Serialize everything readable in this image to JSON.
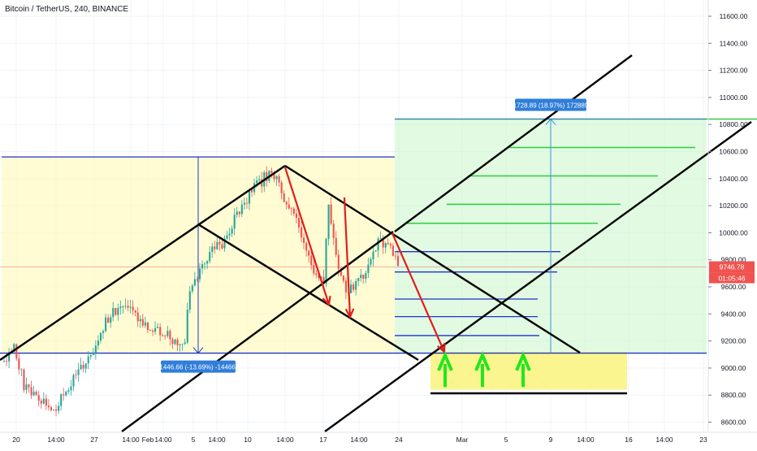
{
  "chart_data": {
    "type": "candlestick",
    "title": "Bitcoin / TetherUS, 240, BINANCE",
    "x_ticks": [
      "20",
      "14:00",
      "27",
      "14:00",
      "Feb",
      "14:00",
      "5",
      "14:00",
      "10",
      "14:00",
      "17",
      "14:00",
      "24",
      "Mar",
      "5",
      "9",
      "14:00",
      "16",
      "14:00",
      "23"
    ],
    "y_ticks": [
      8600,
      8800,
      9000,
      9200,
      9400,
      9600,
      9800,
      10000,
      10200,
      10400,
      10600,
      10800,
      11000,
      11200,
      11400,
      11600
    ],
    "ylim": [
      8530,
      11700
    ],
    "current_price": "9746.78",
    "countdown": "01:05:46",
    "colors": {
      "up": "#26a69a",
      "down": "#ef5350",
      "trend_line": "#000000",
      "level_blue": "#1f35c8",
      "level_green": "#2ecc40",
      "arrow_red": "#e01e1e",
      "arrow_green": "#22e61e",
      "price_badge": "#ef5350",
      "measure_badge": "#2f7ed8"
    },
    "annotations": {
      "drop_measure": "-1446.66 (-13.69%) -144666",
      "rise_measure": "1728.89 (18.97%) 172889"
    },
    "price_levels": {
      "range_top": 10560,
      "range_bottom": 9110,
      "target_top": 10840,
      "blue_levels": [
        9860,
        9710,
        9510,
        9380,
        9240
      ],
      "green_levels": [
        10630,
        10420,
        10210,
        10070
      ],
      "support_zone": [
        8840,
        9120
      ]
    },
    "candles_anchor": [
      [
        0,
        9050
      ],
      [
        4,
        9150
      ],
      [
        8,
        8860
      ],
      [
        12,
        8800
      ],
      [
        16,
        8760
      ],
      [
        20,
        8700
      ],
      [
        25,
        8850
      ],
      [
        30,
        8990
      ],
      [
        34,
        9120
      ],
      [
        38,
        9300
      ],
      [
        42,
        9400
      ],
      [
        46,
        9480
      ],
      [
        50,
        9400
      ],
      [
        54,
        9340
      ],
      [
        58,
        9300
      ],
      [
        62,
        9260
      ],
      [
        66,
        9200
      ],
      [
        70,
        9160
      ],
      [
        72,
        9600
      ],
      [
        76,
        9700
      ],
      [
        80,
        9860
      ],
      [
        84,
        9900
      ],
      [
        88,
        10050
      ],
      [
        92,
        10180
      ],
      [
        96,
        10300
      ],
      [
        100,
        10380
      ],
      [
        104,
        10470
      ],
      [
        108,
        10280
      ],
      [
        112,
        10150
      ],
      [
        116,
        9950
      ],
      [
        120,
        9750
      ],
      [
        124,
        9600
      ],
      [
        126,
        10230
      ],
      [
        130,
        9700
      ],
      [
        134,
        9560
      ],
      [
        138,
        9650
      ],
      [
        142,
        9760
      ],
      [
        146,
        9960
      ],
      [
        150,
        9870
      ],
      [
        154,
        9740
      ]
    ]
  }
}
